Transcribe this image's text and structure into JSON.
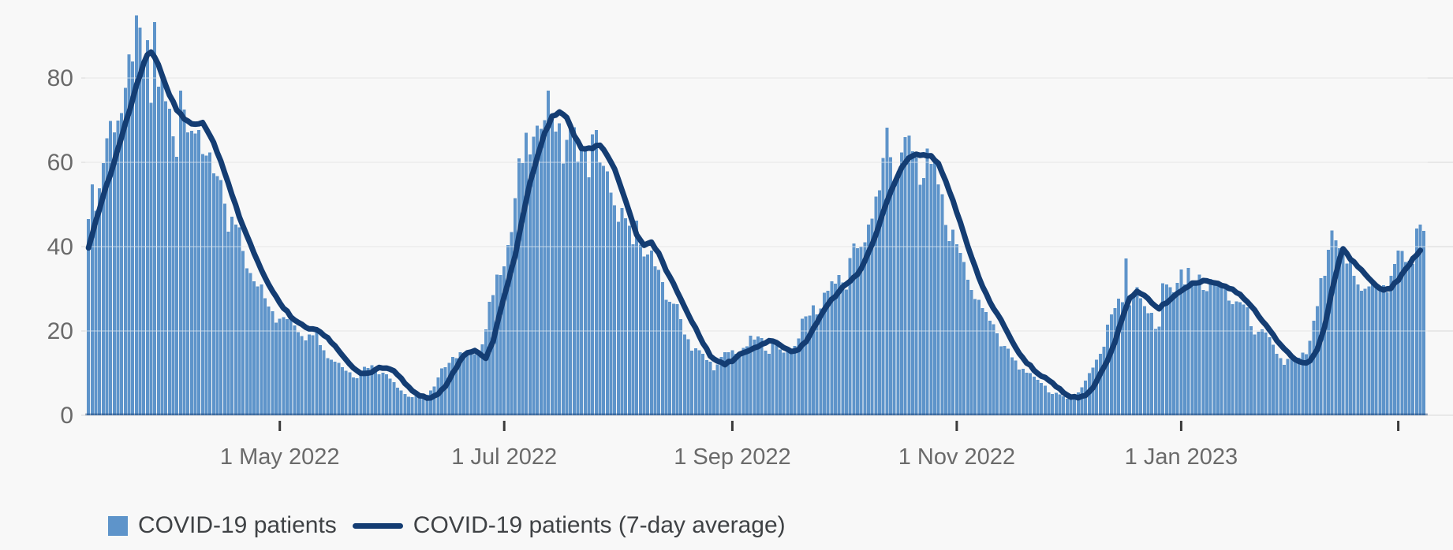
{
  "chart_data": {
    "type": "bar+line",
    "title": "",
    "xlabel": "",
    "ylabel": "",
    "y_ticks": [
      0,
      20,
      40,
      60,
      80
    ],
    "y_tick_labels": [
      "0",
      "20",
      "40",
      "60",
      "80"
    ],
    "ylim": [
      0,
      98
    ],
    "grid": "horizontal",
    "legend_position": "bottom-left",
    "x_ticks": [
      {
        "label": "1 May 2022",
        "date": "2022-05-01"
      },
      {
        "label": "1 Jul 2022",
        "date": "2022-07-01"
      },
      {
        "label": "1 Sep 2022",
        "date": "2022-09-01"
      },
      {
        "label": "1 Nov 2022",
        "date": "2022-11-01"
      },
      {
        "label": "1 Jan 2023",
        "date": "2023-01-01"
      },
      {
        "label": "",
        "date": "2023-03-01"
      }
    ],
    "series": [
      {
        "name": "COVID-19 patients",
        "type": "bar",
        "color": "#5E94CA"
      },
      {
        "name": "COVID-19 patients (7-day average)",
        "type": "line",
        "color": "#143D73"
      }
    ],
    "start_date": "2022-03-10",
    "num_days": 364,
    "avg_anchor_points_day_value": [
      [
        0,
        39.5
      ],
      [
        2,
        46
      ],
      [
        4,
        52
      ],
      [
        7,
        60
      ],
      [
        9,
        66
      ],
      [
        11,
        72
      ],
      [
        13,
        78
      ],
      [
        15,
        83.5
      ],
      [
        16,
        85.5
      ],
      [
        17,
        86.4
      ],
      [
        19,
        83
      ],
      [
        20,
        80.5
      ],
      [
        22,
        76
      ],
      [
        24,
        72.5
      ],
      [
        26,
        70.5
      ],
      [
        28,
        69
      ],
      [
        30,
        69.2
      ],
      [
        31,
        69.4
      ],
      [
        33,
        66.5
      ],
      [
        35,
        62.5
      ],
      [
        37,
        57.5
      ],
      [
        39,
        52.5
      ],
      [
        41,
        47
      ],
      [
        43,
        42.5
      ],
      [
        45,
        38.5
      ],
      [
        47,
        34.5
      ],
      [
        49,
        31
      ],
      [
        51,
        28
      ],
      [
        53,
        25.5
      ],
      [
        55,
        23.5
      ],
      [
        57,
        22
      ],
      [
        59,
        21
      ],
      [
        61,
        20.3
      ],
      [
        63,
        19.8
      ],
      [
        65,
        18.5
      ],
      [
        67,
        16.5
      ],
      [
        69,
        14
      ],
      [
        71,
        12
      ],
      [
        73,
        10.5
      ],
      [
        75,
        9.9
      ],
      [
        77,
        10.4
      ],
      [
        79,
        11.3
      ],
      [
        81,
        11.4
      ],
      [
        83,
        10.5
      ],
      [
        85,
        8.8
      ],
      [
        87,
        6.8
      ],
      [
        89,
        5.3
      ],
      [
        91,
        4.3
      ],
      [
        93,
        3.9
      ],
      [
        95,
        4.9
      ],
      [
        97,
        7
      ],
      [
        99,
        10
      ],
      [
        101,
        13
      ],
      [
        103,
        14.8
      ],
      [
        105,
        15.4
      ],
      [
        107,
        14.2
      ],
      [
        108,
        13.5
      ],
      [
        110,
        17.5
      ],
      [
        112,
        25
      ],
      [
        114,
        31.5
      ],
      [
        116,
        38
      ],
      [
        118,
        47
      ],
      [
        120,
        55
      ],
      [
        122,
        61.5
      ],
      [
        124,
        67
      ],
      [
        126,
        70.8
      ],
      [
        128,
        72
      ],
      [
        130,
        70.5
      ],
      [
        132,
        66.5
      ],
      [
        134,
        63.5
      ],
      [
        136,
        63.2
      ],
      [
        138,
        63.8
      ],
      [
        139,
        64.1
      ],
      [
        141,
        61.8
      ],
      [
        143,
        58.5
      ],
      [
        145,
        53.5
      ],
      [
        147,
        48
      ],
      [
        149,
        43
      ],
      [
        151,
        40.2
      ],
      [
        153,
        41
      ],
      [
        155,
        38.5
      ],
      [
        157,
        34.5
      ],
      [
        159,
        31.2
      ],
      [
        161,
        27.5
      ],
      [
        163,
        24
      ],
      [
        165,
        20.5
      ],
      [
        167,
        17.3
      ],
      [
        169,
        14.3
      ],
      [
        171,
        12.8
      ],
      [
        173,
        12.1
      ],
      [
        175,
        13
      ],
      [
        177,
        14.4
      ],
      [
        179,
        15.3
      ],
      [
        181,
        16
      ],
      [
        183,
        16.9
      ],
      [
        185,
        17.8
      ],
      [
        187,
        17.4
      ],
      [
        189,
        16.1
      ],
      [
        191,
        15.1
      ],
      [
        193,
        15.6
      ],
      [
        195,
        17.5
      ],
      [
        197,
        20.5
      ],
      [
        199,
        23.8
      ],
      [
        201,
        26.5
      ],
      [
        203,
        28.3
      ],
      [
        205,
        30.5
      ],
      [
        207,
        31.8
      ],
      [
        209,
        33.2
      ],
      [
        211,
        36.5
      ],
      [
        213,
        40.5
      ],
      [
        215,
        45.5
      ],
      [
        217,
        50.5
      ],
      [
        219,
        55
      ],
      [
        221,
        58.5
      ],
      [
        223,
        61
      ],
      [
        225,
        62.1
      ],
      [
        227,
        61.6
      ],
      [
        229,
        61.4
      ],
      [
        231,
        59.6
      ],
      [
        233,
        55.5
      ],
      [
        235,
        51
      ],
      [
        237,
        45.5
      ],
      [
        239,
        40
      ],
      [
        241,
        35
      ],
      [
        243,
        30.5
      ],
      [
        245,
        27
      ],
      [
        247,
        24
      ],
      [
        249,
        21
      ],
      [
        251,
        17.5
      ],
      [
        253,
        14.5
      ],
      [
        255,
        12.5
      ],
      [
        257,
        10.8
      ],
      [
        259,
        9.4
      ],
      [
        261,
        8.4
      ],
      [
        263,
        6.9
      ],
      [
        265,
        5.3
      ],
      [
        267,
        4.5
      ],
      [
        269,
        4.1
      ],
      [
        271,
        4.9
      ],
      [
        273,
        6.6
      ],
      [
        275,
        9.6
      ],
      [
        277,
        13.2
      ],
      [
        279,
        17.6
      ],
      [
        281,
        23
      ],
      [
        283,
        27.6
      ],
      [
        285,
        29.4
      ],
      [
        287,
        28.6
      ],
      [
        289,
        26.6
      ],
      [
        291,
        25.3
      ],
      [
        293,
        26.8
      ],
      [
        295,
        28.3
      ],
      [
        297,
        29.5
      ],
      [
        299,
        30.8
      ],
      [
        301,
        31.5
      ],
      [
        304,
        32
      ],
      [
        307,
        31.3
      ],
      [
        310,
        30.2
      ],
      [
        313,
        28.8
      ],
      [
        316,
        26
      ],
      [
        319,
        22.5
      ],
      [
        322,
        19
      ],
      [
        325,
        15.8
      ],
      [
        328,
        13.2
      ],
      [
        330,
        12.3
      ],
      [
        332,
        12.8
      ],
      [
        334,
        15.5
      ],
      [
        336,
        21
      ],
      [
        338,
        29.5
      ],
      [
        340,
        37
      ],
      [
        341,
        39.3
      ],
      [
        343,
        37.2
      ],
      [
        345,
        35.5
      ],
      [
        347,
        33.5
      ],
      [
        349,
        31.5
      ],
      [
        351,
        30.2
      ],
      [
        352,
        29.6
      ],
      [
        354,
        30.3
      ],
      [
        356,
        32
      ],
      [
        358,
        34.5
      ],
      [
        360,
        37
      ],
      [
        362,
        39.3
      ]
    ],
    "bar_overrides_by_day": {
      "16": 89,
      "18": 93.3,
      "25": 77,
      "125": 77,
      "149": 46.2,
      "217": 68.2,
      "222": 66,
      "282": 37.2,
      "290": 20.5,
      "291": 21,
      "297": 34.6,
      "338": 43.8,
      "339": 41.5,
      "361": 44.3,
      "362": 45.2,
      "363": 43.7
    },
    "generation": {
      "bar_lead_days": 3,
      "start_weekday": 4,
      "dow_factors": [
        -0.07,
        0.015,
        0.05,
        0.04,
        0.02,
        -0.005,
        -0.05
      ],
      "noise": 0.14
    },
    "colors": {
      "background": "#F8F8F8",
      "bar": "#5E94CA",
      "line": "#143D73",
      "grid": "#E8E8E8",
      "grid_over_bars": "rgba(255,255,255,0.30)",
      "baseline_strip": "rgba(21,60,110,0.45)",
      "axis_text": "#6A6A6A",
      "tick_mark": "#3B3B3B",
      "legend_text": "#3F4245"
    }
  },
  "legend": {
    "patients_label": "COVID-19 patients",
    "average_label": "COVID-19 patients (7-day average)"
  }
}
